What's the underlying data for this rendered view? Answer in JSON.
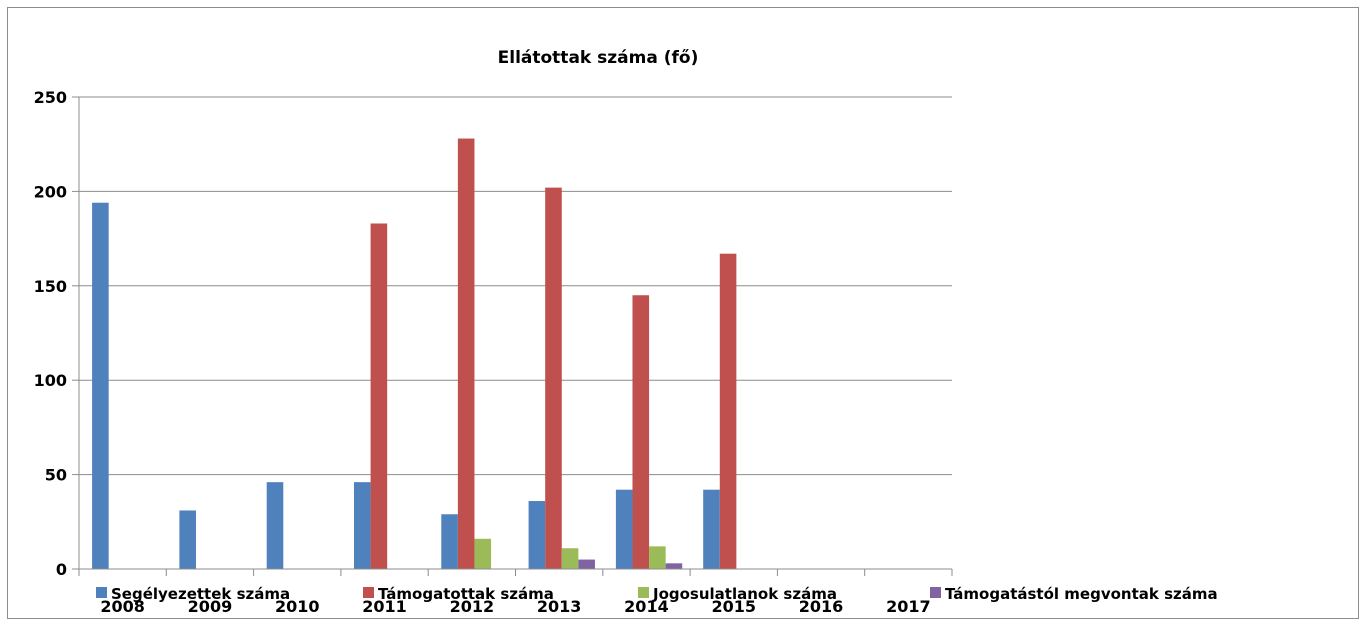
{
  "chart_data": {
    "type": "bar",
    "title": "Ellátottak száma (fő)",
    "categories": [
      "2008",
      "2009",
      "2010",
      "2011",
      "2012",
      "2013",
      "2014",
      "2015",
      "2016",
      "2017"
    ],
    "ylim": [
      0,
      250
    ],
    "yticks": [
      0,
      50,
      100,
      150,
      200,
      250
    ],
    "grid": true,
    "legend_position": "bottom",
    "series": [
      {
        "name": "Segélyezettek száma",
        "color": "#4f81bd",
        "values": [
          194,
          31,
          46,
          46,
          29,
          36,
          42,
          42,
          0,
          0
        ]
      },
      {
        "name": "Támogatottak száma",
        "color": "#c0504d",
        "values": [
          0,
          0,
          0,
          183,
          228,
          202,
          145,
          167,
          0,
          0
        ]
      },
      {
        "name": "Jogosulatlanok száma",
        "color": "#9bbb59",
        "values": [
          0,
          0,
          0,
          0,
          16,
          11,
          12,
          0,
          0,
          0
        ]
      },
      {
        "name": "Támogatástól megvontak száma",
        "color": "#8064a2",
        "values": [
          0,
          0,
          0,
          0,
          0,
          5,
          3,
          0,
          0,
          0
        ]
      }
    ]
  }
}
